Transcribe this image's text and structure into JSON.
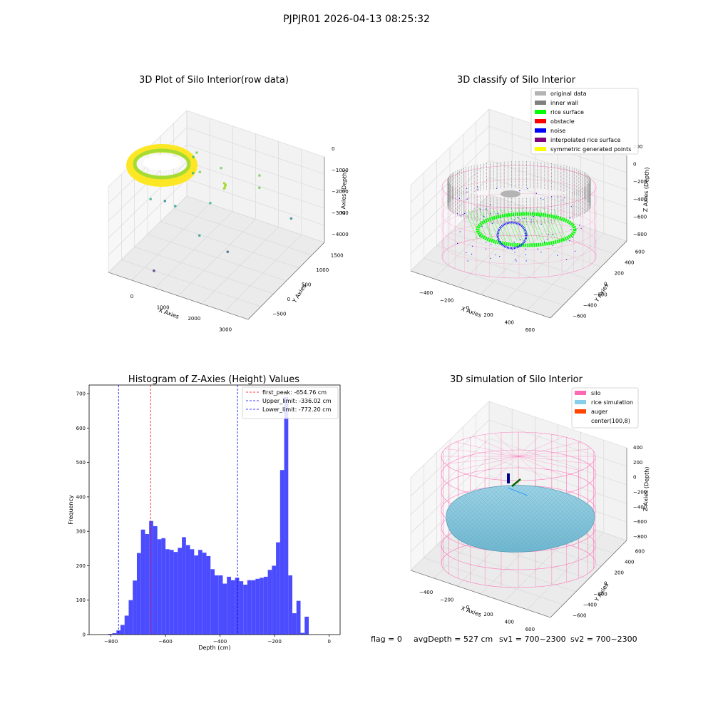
{
  "figure": {
    "suptitle": "PJPJR01 2026-04-13 08:25:32",
    "footer": {
      "flag": "flag = 0",
      "avg_depth": "avgDepth = 527 cm",
      "sv1": "sv1 = 700~2300",
      "sv2": "sv2 = 700~2300"
    }
  },
  "chart_data": [
    {
      "type": "scatter",
      "projection": "3d",
      "title": "3D Plot of Silo Interior(row data)",
      "xlabel": "X Axies",
      "ylabel": "Y Axies",
      "zlabel": "Z Axies (Depth)",
      "x_ticks": [
        "0",
        "1000",
        "2000",
        "3000"
      ],
      "y_ticks": [
        "−500",
        "0",
        "500",
        "1000",
        "1500"
      ],
      "z_ticks": [
        "0",
        "−1000",
        "−2000",
        "−3000",
        "−4000"
      ],
      "xlim": [
        -500,
        3500
      ],
      "ylim": [
        -600,
        1600
      ],
      "zlim": [
        -4500,
        200
      ],
      "colormap": "viridis",
      "ring": {
        "center_x": 0,
        "center_y": 0,
        "radius": 450,
        "depth_range": [
          -400,
          -1100
        ]
      },
      "outliers": [
        {
          "x": 600,
          "y": 800,
          "z": -1200
        },
        {
          "x": 400,
          "y": 900,
          "z": -1600
        },
        {
          "x": 800,
          "y": 500,
          "z": -1500
        },
        {
          "x": 1200,
          "y": 300,
          "z": -1000
        },
        {
          "x": 1600,
          "y": 200,
          "z": -1900
        },
        {
          "x": 700,
          "y": 100,
          "z": -2300
        },
        {
          "x": 300,
          "y": -200,
          "z": -1800
        },
        {
          "x": 2600,
          "y": 600,
          "z": -900
        },
        {
          "x": 2700,
          "y": 500,
          "z": -1200
        },
        {
          "x": 1800,
          "y": -300,
          "z": -2400
        },
        {
          "x": 3100,
          "y": 1000,
          "z": -2900
        },
        {
          "x": 2200,
          "y": 100,
          "z": -3400
        },
        {
          "x": 600,
          "y": -400,
          "z": -4200
        },
        {
          "x": 1400,
          "y": 700,
          "z": -1300
        },
        {
          "x": 200,
          "y": 300,
          "z": -2600
        }
      ]
    },
    {
      "type": "scatter",
      "projection": "3d",
      "title": "3D classify of Silo Interior",
      "xlabel": "X Axies",
      "ylabel": "Y Axies",
      "zlabel": "Z Axies (Depth)",
      "x_ticks": [
        "−400",
        "−200",
        "0",
        "200",
        "400",
        "600"
      ],
      "y_ticks": [
        "−600",
        "−400",
        "−200",
        "0",
        "200",
        "400",
        "600"
      ],
      "z_ticks": [
        "200",
        "0",
        "−200",
        "−400",
        "−600",
        "−800"
      ],
      "xlim": [
        -500,
        700
      ],
      "ylim": [
        -650,
        650
      ],
      "zlim": [
        -950,
        300
      ],
      "legend_position": "upper right",
      "legend": [
        {
          "label": "original data",
          "color": "#b4b4b4"
        },
        {
          "label": "inner wall",
          "color": "#808080"
        },
        {
          "label": "rice surface",
          "color": "#00ff00"
        },
        {
          "label": "obstacle",
          "color": "#ff0000"
        },
        {
          "label": "noise",
          "color": "#0000ff"
        },
        {
          "label": "interpolated rice surface",
          "color": "#800080"
        },
        {
          "label": "symmetric generated points",
          "color": "#ffff00"
        }
      ],
      "silo_wireframe_color": "#ff69b4",
      "silo": {
        "radius": 560,
        "z_top": 0,
        "z_bottom": -900
      }
    },
    {
      "type": "bar",
      "title": "Histogram of Z-Axies (Height) Values",
      "xlabel": "Depth (cm)",
      "ylabel": "Frequency",
      "bar_color": "#4c4cff",
      "xlim": [
        -880,
        40
      ],
      "ylim": [
        0,
        725
      ],
      "x_ticks": [
        -800,
        -600,
        -400,
        -200,
        0
      ],
      "x_tick_labels": [
        "−800",
        "−600",
        "−400",
        "−200",
        "0"
      ],
      "y_ticks": [
        0,
        100,
        200,
        300,
        400,
        500,
        600,
        700
      ],
      "bin_width": 15,
      "bin_start": -810,
      "values": [
        2,
        4,
        12,
        28,
        55,
        100,
        157,
        237,
        305,
        292,
        330,
        315,
        277,
        280,
        248,
        246,
        240,
        252,
        283,
        260,
        248,
        230,
        246,
        238,
        228,
        190,
        172,
        172,
        148,
        168,
        158,
        165,
        155,
        145,
        158,
        158,
        162,
        165,
        168,
        188,
        200,
        268,
        478,
        690,
        172,
        62,
        98,
        5,
        52
      ],
      "lines": [
        {
          "label": "first_peak: -654.76 cm",
          "value": -654.76,
          "color": "#ff0000"
        },
        {
          "label": "Upper_limit: -336.02 cm",
          "value": -336.02,
          "color": "#0000ff"
        },
        {
          "label": "Lower_limit: -772.20 cm",
          "value": -772.2,
          "color": "#0000ff"
        }
      ],
      "legend_position": "upper right"
    },
    {
      "type": "surface",
      "projection": "3d",
      "title": "3D simulation of Silo Interior",
      "xlabel": "X Axies",
      "ylabel": "Y Axies",
      "zlabel": "Z Axies (Depth)",
      "x_ticks": [
        "−400",
        "−200",
        "0",
        "200",
        "400",
        "600"
      ],
      "y_ticks": [
        "−600",
        "−400",
        "−200",
        "0",
        "200",
        "400",
        "600"
      ],
      "z_ticks": [
        "400",
        "200",
        "0",
        "−200",
        "−400",
        "−600",
        "−800"
      ],
      "xlim": [
        -500,
        700
      ],
      "ylim": [
        -650,
        650
      ],
      "zlim": [
        -950,
        450
      ],
      "legend_position": "upper right",
      "legend": [
        {
          "label": "silo",
          "color": "#ff69b4"
        },
        {
          "label": "rice simulation",
          "color": "#87ceeb"
        },
        {
          "label": "auger",
          "color": "#ff4500"
        },
        {
          "label": "center(100,8)",
          "color": "none"
        }
      ],
      "center": {
        "x": 100,
        "y": 8
      }
    }
  ]
}
